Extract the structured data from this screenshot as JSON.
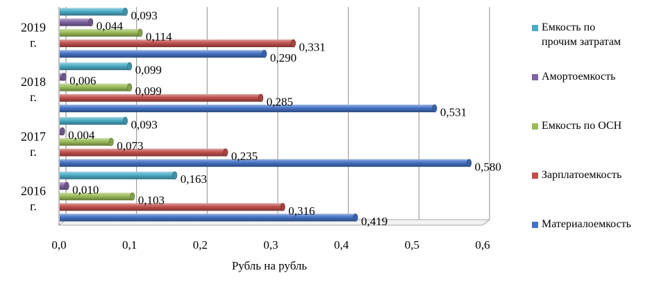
{
  "chart_data": {
    "type": "bar",
    "orientation": "horizontal",
    "categories": [
      "2016 г.",
      "2017 г.",
      "2018 г.",
      "2019 г."
    ],
    "series": [
      {
        "name": "Материалоемкость",
        "color": "#4472C4",
        "values": [
          0.419,
          0.58,
          0.531,
          0.29
        ],
        "labels": [
          "0,419",
          "0,580",
          "0,531",
          "0,290"
        ]
      },
      {
        "name": "Зарплатоемкость",
        "color": "#C0504D",
        "values": [
          0.316,
          0.235,
          0.285,
          0.331
        ],
        "labels": [
          "0,316",
          "0,235",
          "0,285",
          "0,331"
        ]
      },
      {
        "name": "Емкость по ОСН",
        "color": "#9BBB59",
        "values": [
          0.103,
          0.073,
          0.099,
          0.114
        ],
        "labels": [
          "0,103",
          "0,073",
          "0,099",
          "0,114"
        ]
      },
      {
        "name": "Амортоемкость",
        "color": "#8064A2",
        "values": [
          0.01,
          0.004,
          0.006,
          0.044
        ],
        "labels": [
          "0,010",
          "0,004",
          "0,006",
          "0,044"
        ]
      },
      {
        "name": "Емкость по прочим затратам",
        "color": "#4BACC6",
        "values": [
          0.163,
          0.093,
          0.099,
          0.093
        ],
        "labels": [
          "0,163",
          "0,093",
          "0,099",
          "0,093"
        ]
      }
    ],
    "xlim": [
      0,
      0.6
    ],
    "xticks": [
      "0,0",
      "0,1",
      "0,2",
      "0,3",
      "0,4",
      "0,5",
      "0,6"
    ],
    "xlabel": "Рубль на рубль",
    "ylabel": "",
    "grid": true,
    "legend": {
      "position": "right",
      "entries": [
        {
          "lines": [
            "Емкость по",
            "прочим затратам"
          ],
          "color": "#4BACC6"
        },
        {
          "lines": [
            "Амортоемкость"
          ],
          "color": "#8064A2"
        },
        {
          "lines": [
            "Емкость по ОСН"
          ],
          "color": "#9BBB59"
        },
        {
          "lines": [
            "Зарплатоемкость"
          ],
          "color": "#C0504D"
        },
        {
          "lines": [
            "Материалоемкость"
          ],
          "color": "#4472C4"
        }
      ]
    }
  }
}
